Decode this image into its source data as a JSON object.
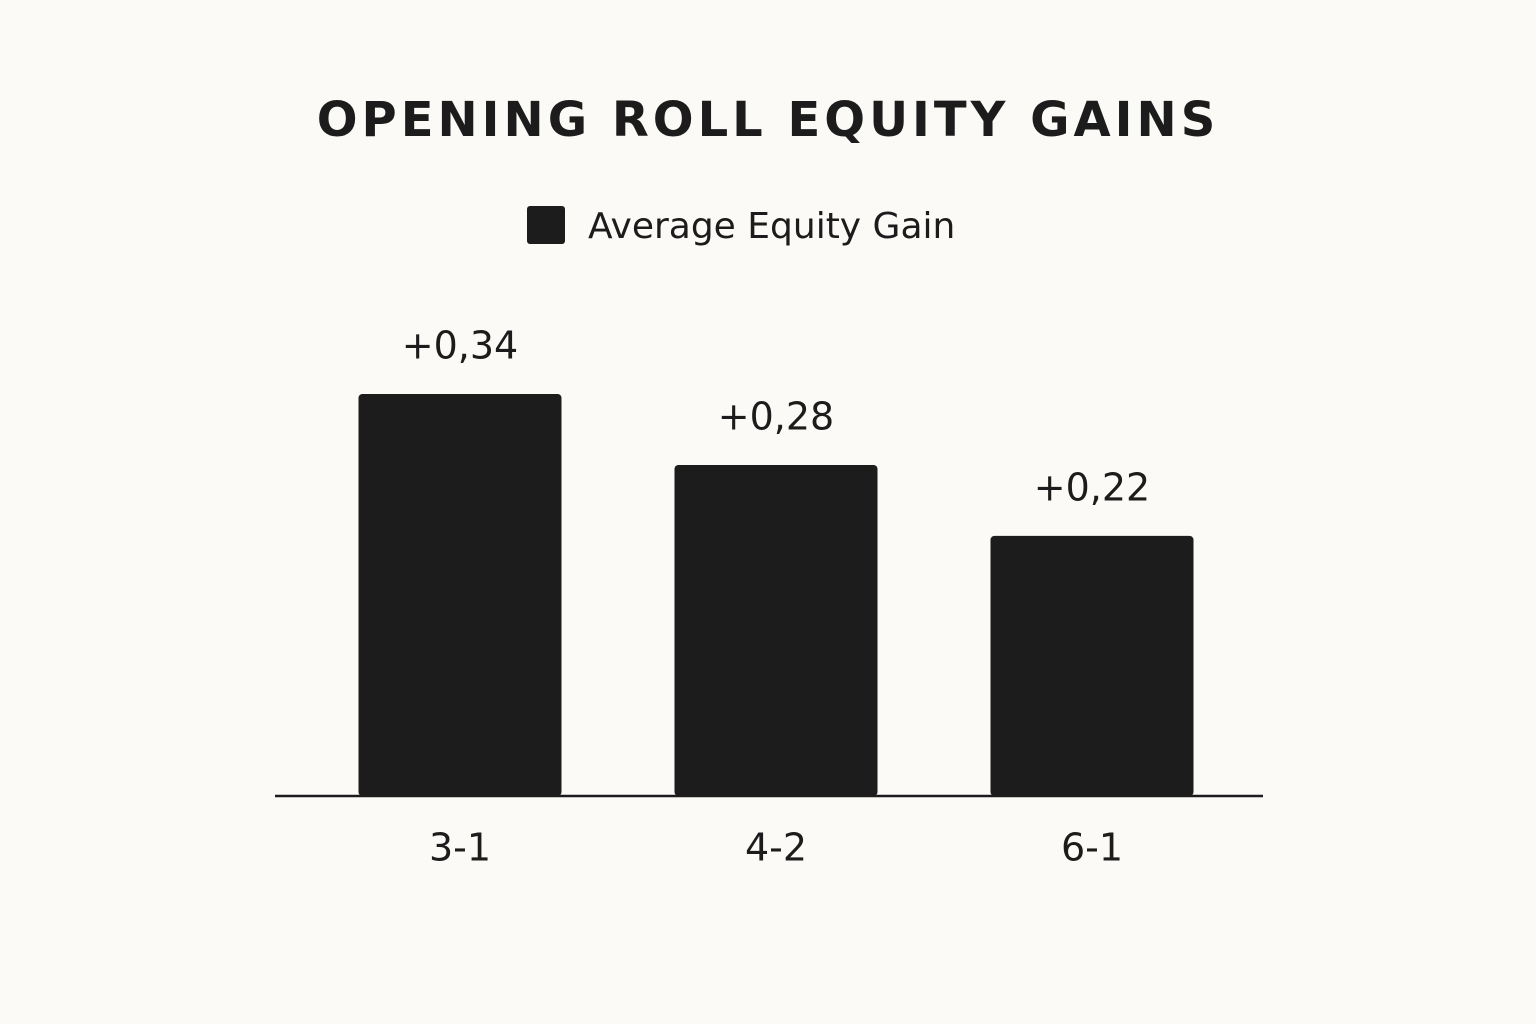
{
  "chart_data": {
    "type": "bar",
    "title": "OPENING ROLL EQUITY GAINS",
    "categories": [
      "3-1",
      "4-2",
      "6-1"
    ],
    "series": [
      {
        "name": "Average Equity Gain",
        "color": "#1c1c1c",
        "values": [
          0.34,
          0.28,
          0.22
        ],
        "value_labels": [
          "+0,34",
          "+0,28",
          "+0,22"
        ]
      }
    ],
    "legend": "top"
  }
}
